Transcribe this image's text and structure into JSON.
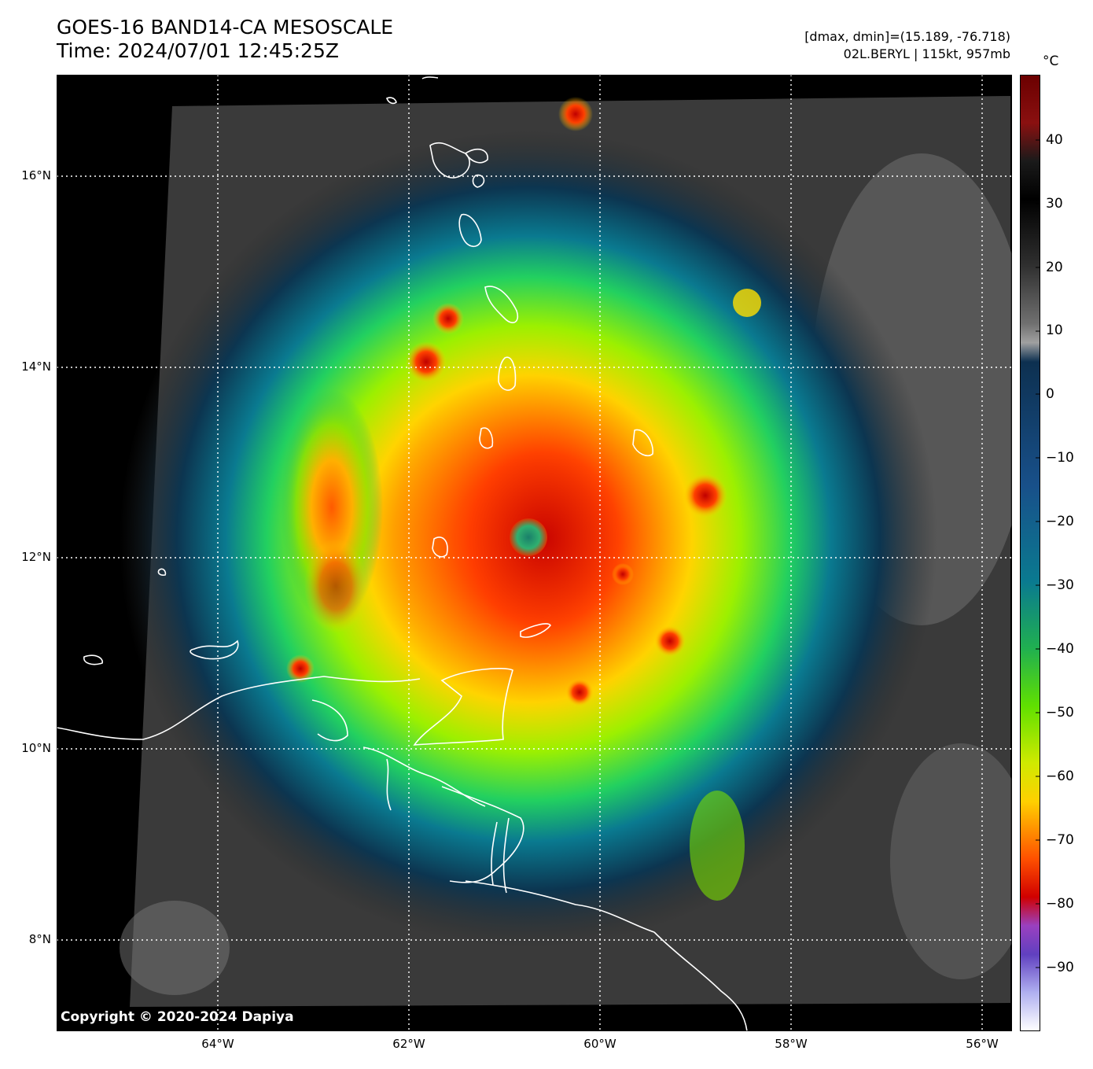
{
  "header": {
    "title_line1": "GOES-16 BAND14-CA MESOSCALE",
    "title_line2": "Time: 2024/07/01 12:45:25Z",
    "info_line1": "[dmax, dmin]=(15.189, -76.718)",
    "info_line2": "02L.BERYL | 115kt, 957mb"
  },
  "map": {
    "lat_labels": [
      "16°N",
      "14°N",
      "12°N",
      "10°N",
      "8°N"
    ],
    "lon_labels": [
      "64°W",
      "62°W",
      "60°W",
      "58°W",
      "56°W"
    ],
    "copyright": "Copyright © 2020-2024 Dapiya"
  },
  "colorbar": {
    "unit": "°C",
    "labels": [
      "40",
      "30",
      "20",
      "10",
      "0",
      "−10",
      "−20",
      "−30",
      "−40",
      "−50",
      "−60",
      "−70",
      "−80",
      "−90"
    ],
    "range": [
      -100,
      50
    ]
  },
  "storm": {
    "name": "02L.BERYL",
    "wind": "115kt",
    "pressure": "957mb"
  }
}
